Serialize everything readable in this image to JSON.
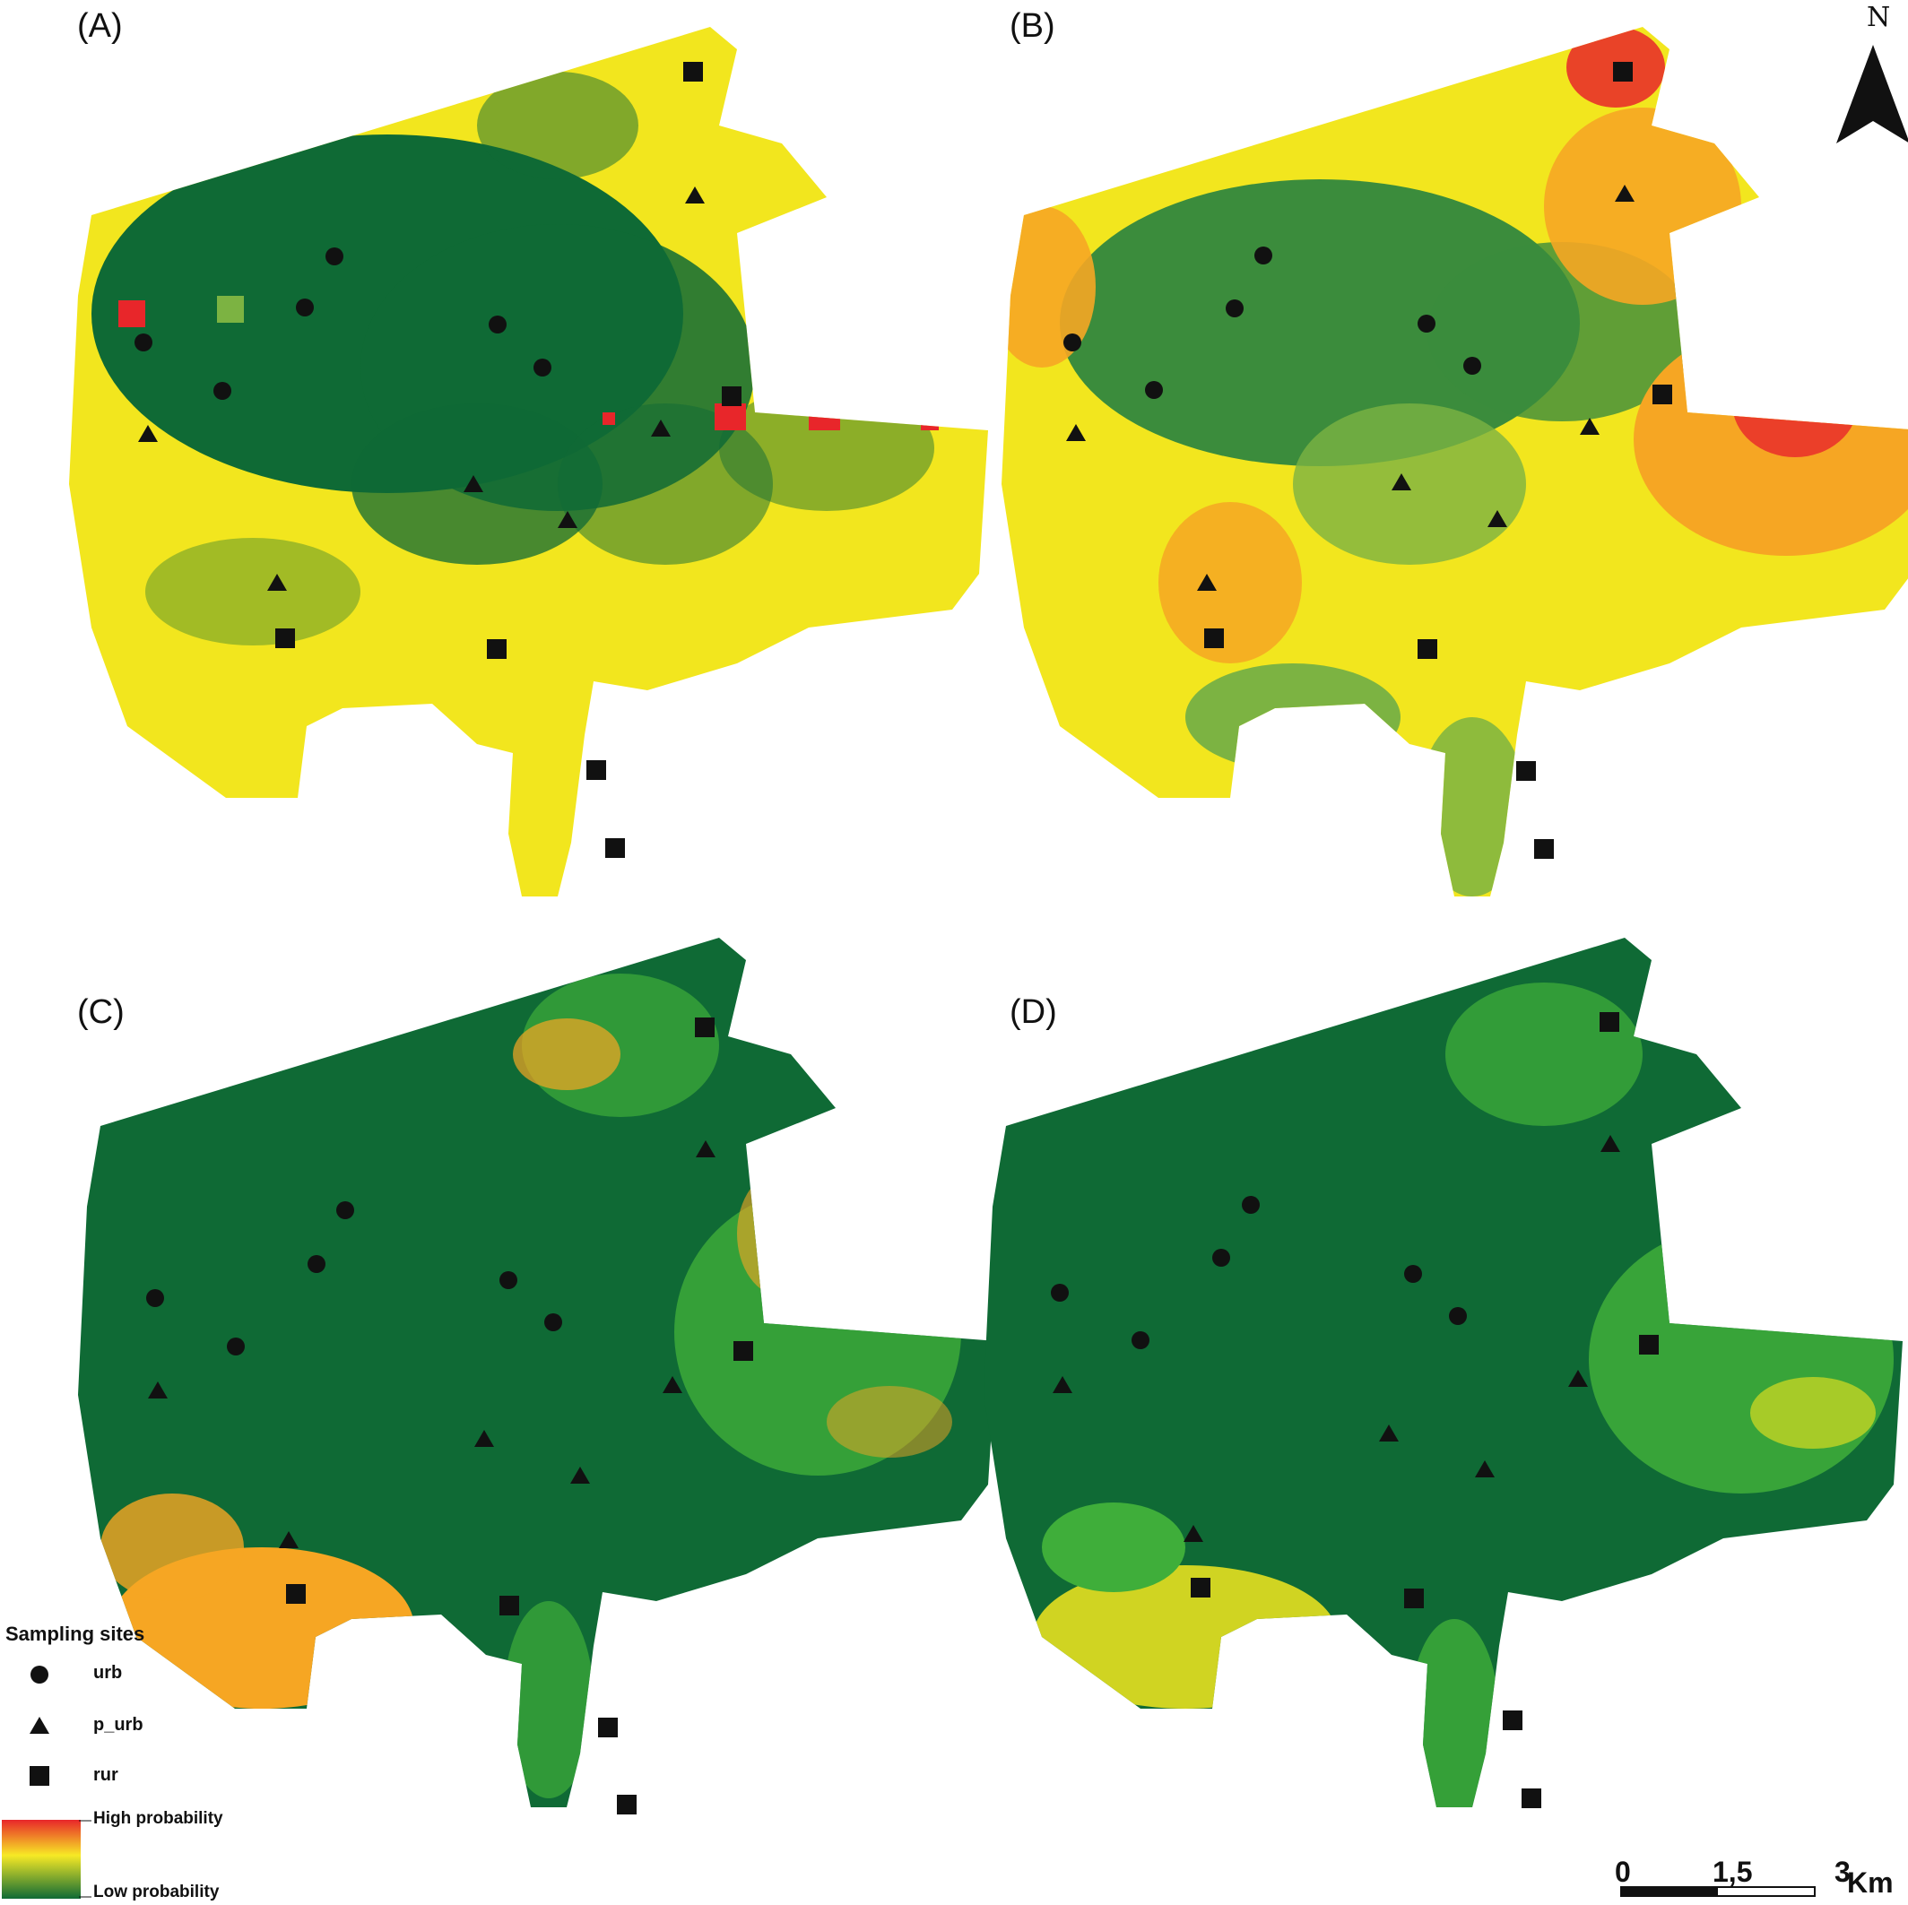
{
  "panels": [
    {
      "id": "A",
      "label": "(A)",
      "theme": "yellow"
    },
    {
      "id": "B",
      "label": "(B)",
      "theme": "orange"
    },
    {
      "id": "C",
      "label": "(C)",
      "theme": "green-orange"
    },
    {
      "id": "D",
      "label": "(D)",
      "theme": "green-yellow"
    }
  ],
  "legend": {
    "title": "Sampling sites",
    "items": [
      {
        "symbol": "circle",
        "label": "urb"
      },
      {
        "symbol": "triangle",
        "label": "p_urb"
      },
      {
        "symbol": "square",
        "label": "rur"
      }
    ],
    "gradient_high": "High probability",
    "gradient_low": "Low probability",
    "gradient_colors": [
      "#e8262a",
      "#f7e925",
      "#0f6a35"
    ]
  },
  "scale_bar": {
    "labels": [
      "0",
      "1,5",
      "3"
    ],
    "unit": "Km"
  },
  "north_arrow": {
    "letter": "N"
  },
  "colors": {
    "dark_green": "#0f6a35",
    "mid_green": "#3b8c3c",
    "light_green": "#7cb342",
    "bright_green": "#3fae3a",
    "yellow": "#f2e61e",
    "orange": "#f6a623",
    "red": "#e8262a"
  }
}
